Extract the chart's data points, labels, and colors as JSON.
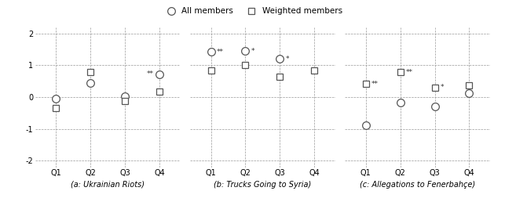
{
  "panels": [
    {
      "title": "(a: Ukrainian Riots)",
      "all_members": [
        -0.05,
        0.45,
        0.02,
        0.72
      ],
      "weighted_members": [
        -0.33,
        0.78,
        -0.12,
        0.18
      ],
      "ann_all": [
        "",
        "",
        "",
        "**"
      ],
      "ann_all_side": [
        "right",
        "right",
        "right",
        "left"
      ],
      "ann_weighted": [
        "",
        "",
        "",
        ""
      ],
      "ann_weighted_side": [
        "right",
        "right",
        "right",
        "right"
      ]
    },
    {
      "title": "(b: Trucks Going to Syria)",
      "all_members": [
        1.42,
        1.45,
        1.2,
        null
      ],
      "weighted_members": [
        0.85,
        1.0,
        0.65,
        0.85
      ],
      "ann_all": [
        "**",
        "*",
        "*",
        ""
      ],
      "ann_all_side": [
        "right",
        "right",
        "right",
        "right"
      ],
      "ann_weighted": [
        "",
        "",
        "",
        ""
      ],
      "ann_weighted_side": [
        "right",
        "right",
        "right",
        "right"
      ]
    },
    {
      "title": "(c: Allegations to Fenerbahçe)",
      "all_members": [
        -0.88,
        -0.18,
        -0.28,
        0.12
      ],
      "weighted_members": [
        0.42,
        0.78,
        0.3,
        0.38
      ],
      "ann_all": [
        "",
        "",
        "",
        ""
      ],
      "ann_all_side": [
        "right",
        "right",
        "right",
        "right"
      ],
      "ann_weighted": [
        "**",
        "**",
        "*",
        ""
      ],
      "ann_weighted_side": [
        "right",
        "right",
        "right",
        "right"
      ]
    }
  ],
  "xtick_labels": [
    "Q1",
    "Q2",
    "Q3",
    "Q4"
  ],
  "ylim": [
    -2.2,
    2.2
  ],
  "yticks": [
    -2,
    -1,
    0,
    1,
    2
  ],
  "circle_color": "white",
  "circle_edge": "#555555",
  "square_color": "white",
  "square_edge": "#555555",
  "marker_size_circle": 7,
  "marker_size_square": 6,
  "annotation_fontsize": 6.5,
  "axis_fontsize": 7,
  "title_fontsize": 7,
  "legend_fontsize": 7.5
}
